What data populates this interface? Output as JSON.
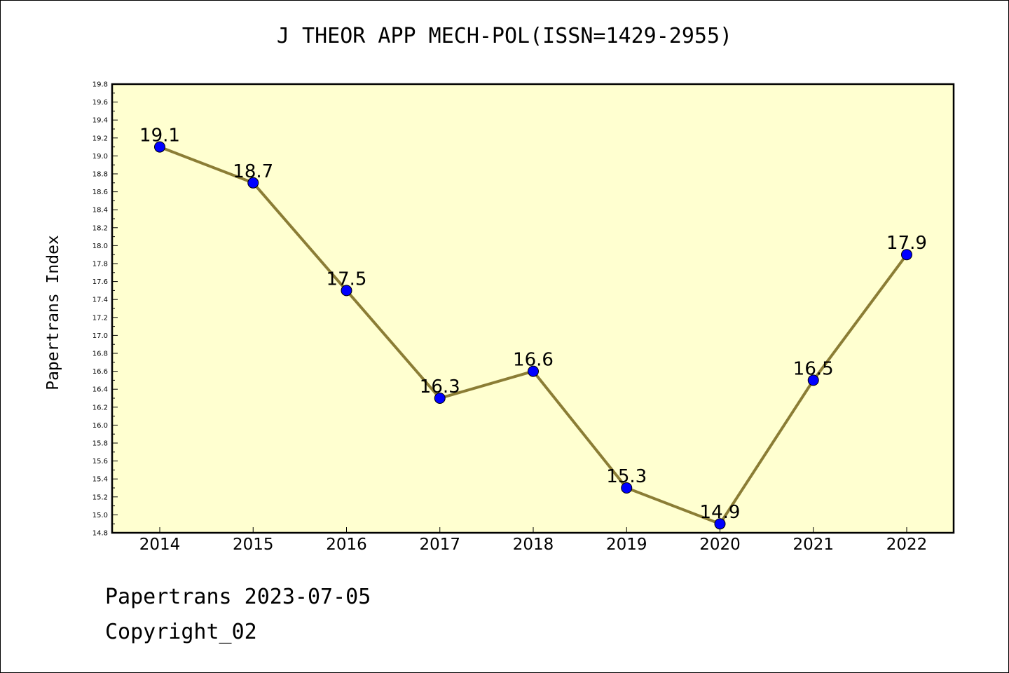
{
  "title": "J THEOR APP MECH-POL(ISSN=1429-2955)",
  "footer": {
    "date_line": "Papertrans 2023-07-05",
    "copyright": "Copyright_02"
  },
  "colors": {
    "plot_background": "#ffffd0",
    "line": "#8b7d35",
    "marker": "#0000ff"
  },
  "chart_data": {
    "type": "line",
    "title": "J THEOR APP MECH-POL(ISSN=1429-2955)",
    "xlabel": "",
    "ylabel": "Papertrans Index",
    "categories": [
      "2014",
      "2015",
      "2016",
      "2017",
      "2018",
      "2019",
      "2020",
      "2021",
      "2022"
    ],
    "values": [
      19.1,
      18.7,
      17.5,
      16.3,
      16.6,
      15.3,
      14.9,
      16.5,
      17.9
    ],
    "data_labels": [
      "19.1",
      "18.7",
      "17.5",
      "16.3",
      "16.6",
      "15.3",
      "14.9",
      "16.5",
      "17.9"
    ],
    "ylim": [
      14.8,
      19.8
    ],
    "yticks": [
      "14.8",
      "15.0",
      "15.2",
      "15.4",
      "15.6",
      "15.8",
      "16.0",
      "16.2",
      "16.4",
      "16.6",
      "16.8",
      "17.0",
      "17.2",
      "17.4",
      "17.6",
      "17.8",
      "18.0",
      "18.2",
      "18.4",
      "18.6",
      "18.8",
      "19.0",
      "19.2",
      "19.4",
      "19.6",
      "19.8"
    ],
    "grid": false,
    "legend": "none"
  }
}
